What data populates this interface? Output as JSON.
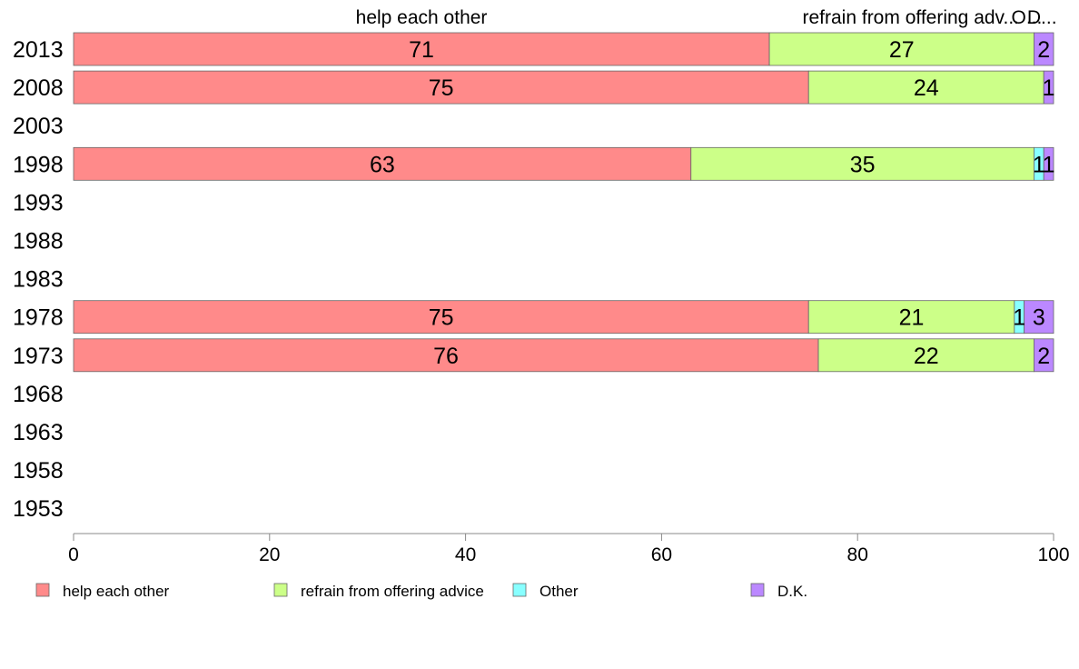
{
  "chart_data": {
    "type": "bar",
    "orientation": "horizontal",
    "stacked": true,
    "categories": [
      "2013",
      "2008",
      "2003",
      "1998",
      "1993",
      "1988",
      "1983",
      "1978",
      "1973",
      "1968",
      "1963",
      "1958",
      "1953"
    ],
    "series": [
      {
        "name": "help each other",
        "color": "#ff8a8a",
        "values": [
          71,
          75,
          null,
          63,
          null,
          null,
          null,
          75,
          76,
          null,
          null,
          null,
          null
        ]
      },
      {
        "name": "refrain from offering advice",
        "color": "#ccff88",
        "values": [
          27,
          24,
          null,
          35,
          null,
          null,
          null,
          21,
          22,
          null,
          null,
          null,
          null
        ]
      },
      {
        "name": "Other",
        "color": "#88ffff",
        "values": [
          0,
          0,
          null,
          1,
          null,
          null,
          null,
          1,
          0,
          null,
          null,
          null,
          null
        ]
      },
      {
        "name": "D.K.",
        "color": "#bb88ff",
        "values": [
          2,
          1,
          null,
          1,
          null,
          null,
          null,
          3,
          2,
          null,
          null,
          null,
          null
        ]
      }
    ],
    "top_labels": [
      "help each other",
      "refrain from offering adv...",
      "O...",
      "D..."
    ],
    "xlim": [
      0,
      100
    ],
    "xticks": [
      "0",
      "20",
      "40",
      "60",
      "80",
      "100"
    ],
    "legend_position": "bottom",
    "grid": false
  }
}
